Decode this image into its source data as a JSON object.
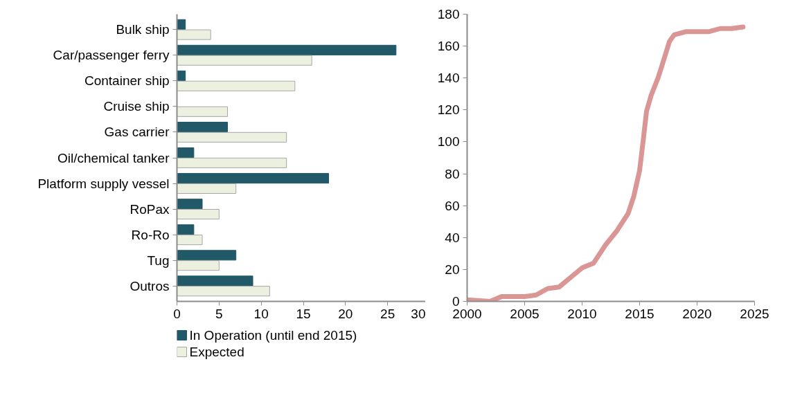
{
  "chart_data": [
    {
      "type": "bar",
      "orientation": "horizontal",
      "categories": [
        "Bulk ship",
        "Car/passenger ferry",
        "Container ship",
        "Cruise ship",
        "Gas carrier",
        "Oil/chemical tanker",
        "Platform supply vessel",
        "RoPax",
        "Ro-Ro",
        "Tug",
        "Outros"
      ],
      "series": [
        {
          "name": "In Operation (until end 2015)",
          "color": "#215968",
          "values": [
            1,
            26,
            1,
            0,
            6,
            2,
            18,
            3,
            2,
            7,
            9
          ]
        },
        {
          "name": "Expected",
          "color": "#ebf1de",
          "values": [
            4,
            16,
            14,
            6,
            13,
            13,
            7,
            5,
            3,
            5,
            11
          ]
        }
      ],
      "xlim": [
        0,
        30
      ],
      "xticks": [
        0,
        5,
        10,
        15,
        20,
        25,
        30
      ],
      "grid": false,
      "legend": "bottom"
    },
    {
      "type": "line",
      "x": [
        2000,
        2002,
        2003,
        2005,
        2006,
        2007,
        2008,
        2009,
        2010,
        2011,
        2012,
        2013,
        2014,
        2014.5,
        2015,
        2015.3,
        2015.6,
        2016,
        2016.6,
        2017,
        2017.6,
        2018,
        2019,
        2020,
        2021,
        2022,
        2023,
        2024
      ],
      "series": [
        {
          "color": "#d99694",
          "values": [
            1,
            0,
            3,
            3,
            4,
            8,
            9,
            15,
            21,
            24,
            35,
            44,
            55,
            66,
            82,
            100,
            119,
            129,
            140,
            149,
            163,
            167,
            169,
            169,
            169,
            171,
            171,
            172
          ]
        }
      ],
      "xlim": [
        2000,
        2025
      ],
      "xticks": [
        2000,
        2005,
        2010,
        2015,
        2020,
        2025
      ],
      "ylim": [
        0,
        180
      ],
      "yticks": [
        0,
        20,
        40,
        60,
        80,
        100,
        120,
        140,
        160,
        180
      ],
      "grid": false
    }
  ]
}
